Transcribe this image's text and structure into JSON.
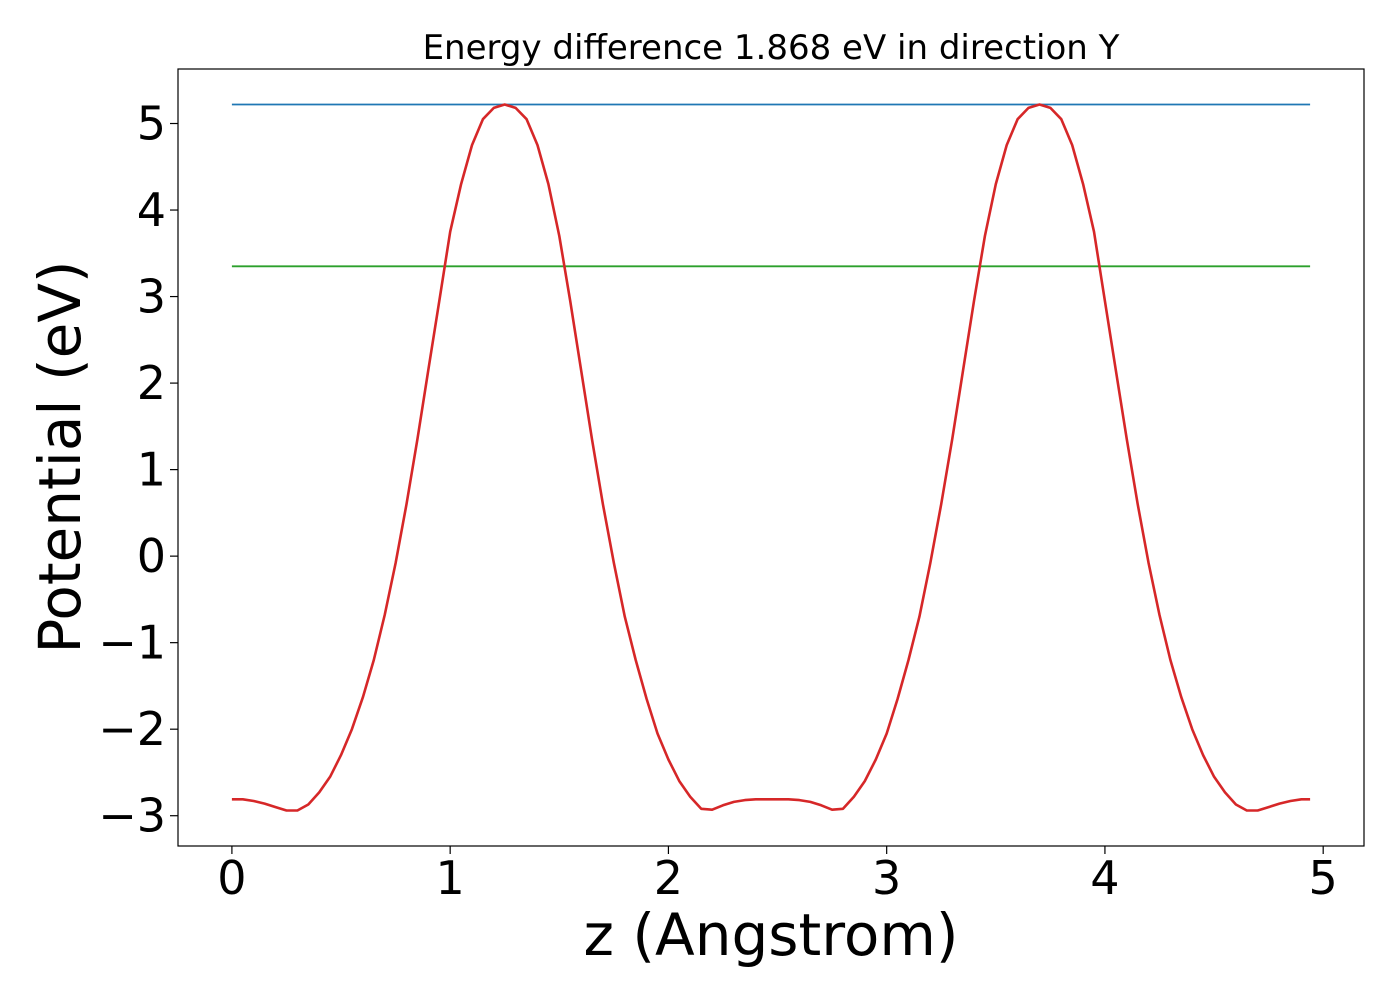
{
  "chart_data": {
    "type": "line",
    "title": "Energy difference 1.868 eV in direction Y",
    "xlabel": "z (Angstrom)",
    "ylabel": "Potential (eV)",
    "xlim": [
      -0.247,
      5.187
    ],
    "ylim": [
      -3.35,
      5.63
    ],
    "xticks": [
      0,
      1,
      2,
      3,
      4,
      5
    ],
    "xtick_labels": [
      "0",
      "1",
      "2",
      "3",
      "4",
      "5"
    ],
    "yticks": [
      -3,
      -2,
      -1,
      0,
      1,
      2,
      3,
      4,
      5
    ],
    "ytick_labels": [
      "−3",
      "−2",
      "−1",
      "0",
      "1",
      "2",
      "3",
      "4",
      "5"
    ],
    "grid": false,
    "series": [
      {
        "color": "#1f77b4",
        "x": [
          0,
          4.94
        ],
        "y": [
          5.22,
          5.22
        ]
      },
      {
        "color": "#2ca02c",
        "x": [
          0,
          4.94
        ],
        "y": [
          3.35,
          3.35
        ]
      },
      {
        "color": "#d62728",
        "x": [
          0,
          0.05,
          0.1,
          0.15,
          0.2,
          0.25,
          0.3,
          0.35,
          0.4,
          0.45,
          0.5,
          0.55,
          0.6,
          0.65,
          0.7,
          0.75,
          0.8,
          0.85,
          0.9,
          0.95,
          1.0,
          1.05,
          1.1,
          1.15,
          1.2,
          1.25,
          1.3,
          1.35,
          1.4,
          1.45,
          1.5,
          1.55,
          1.6,
          1.65,
          1.7,
          1.75,
          1.8,
          1.85,
          1.9,
          1.95,
          2.0,
          2.05,
          2.1,
          2.15,
          2.2,
          2.25,
          2.3,
          2.35,
          2.4,
          2.45,
          2.5,
          2.55,
          2.6,
          2.65,
          2.7,
          2.75,
          2.8,
          2.85,
          2.9,
          2.95,
          3.0,
          3.05,
          3.1,
          3.15,
          3.2,
          3.25,
          3.3,
          3.35,
          3.4,
          3.45,
          3.5,
          3.55,
          3.6,
          3.65,
          3.7,
          3.75,
          3.8,
          3.85,
          3.9,
          3.95,
          4.0,
          4.05,
          4.1,
          4.15,
          4.2,
          4.25,
          4.3,
          4.35,
          4.4,
          4.45,
          4.5,
          4.55,
          4.6,
          4.65,
          4.7,
          4.75,
          4.8,
          4.85,
          4.9,
          4.94
        ],
        "y": [
          -2.81,
          -2.81,
          -2.83,
          -2.86,
          -2.9,
          -2.94,
          -2.94,
          -2.87,
          -2.73,
          -2.55,
          -2.3,
          -2.0,
          -1.63,
          -1.2,
          -0.68,
          -0.08,
          0.6,
          1.35,
          2.15,
          2.95,
          3.75,
          4.3,
          4.75,
          5.05,
          5.18,
          5.22,
          5.18,
          5.05,
          4.75,
          4.3,
          3.7,
          2.95,
          2.15,
          1.35,
          0.6,
          -0.08,
          -0.7,
          -1.2,
          -1.65,
          -2.05,
          -2.35,
          -2.6,
          -2.78,
          -2.92,
          -2.93,
          -2.88,
          -2.84,
          -2.82,
          -2.81,
          -2.81,
          -2.81,
          -2.81,
          -2.82,
          -2.84,
          -2.88,
          -2.93,
          -2.92,
          -2.78,
          -2.6,
          -2.35,
          -2.05,
          -1.65,
          -1.2,
          -0.7,
          -0.08,
          0.6,
          1.35,
          2.15,
          2.95,
          3.7,
          4.3,
          4.75,
          5.05,
          5.18,
          5.22,
          5.18,
          5.05,
          4.75,
          4.3,
          3.75,
          2.95,
          2.15,
          1.35,
          0.6,
          -0.08,
          -0.68,
          -1.2,
          -1.63,
          -2.0,
          -2.3,
          -2.55,
          -2.73,
          -2.87,
          -2.94,
          -2.94,
          -2.9,
          -2.86,
          -2.83,
          -2.81,
          -2.81
        ]
      }
    ]
  }
}
